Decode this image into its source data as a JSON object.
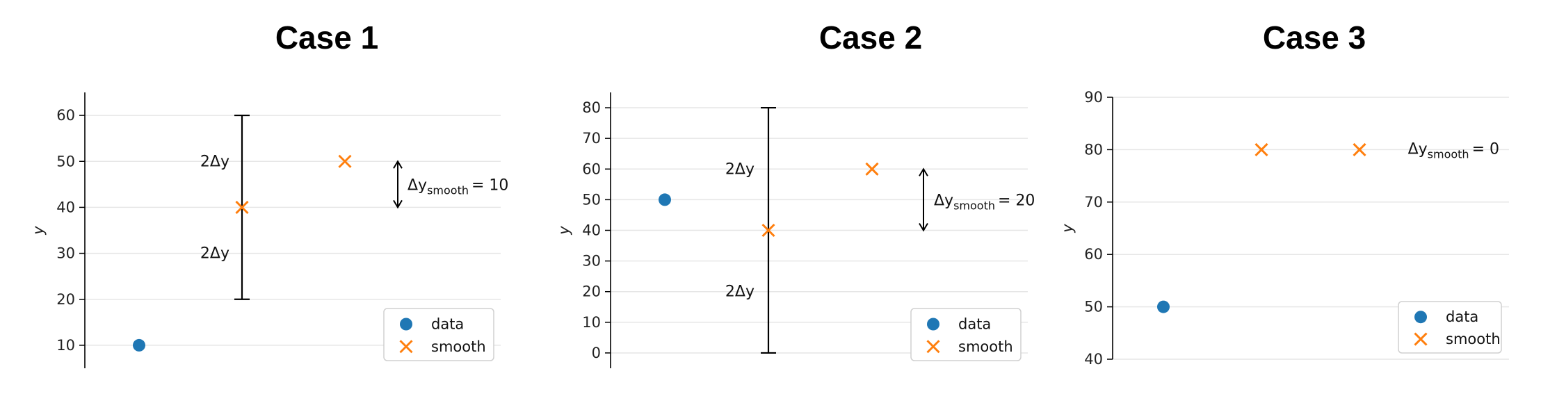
{
  "colors": {
    "data": "#1f77b4",
    "smooth": "#ff7f0e",
    "grid": "#e6e6e6",
    "axis": "#000000"
  },
  "chart_data": [
    {
      "type": "scatter",
      "title": "Case 1",
      "ylabel": "y",
      "ylim": [
        5,
        65
      ],
      "yticks": [
        10,
        20,
        30,
        40,
        50,
        60
      ],
      "grid": true,
      "legend": {
        "position": "bottom-right",
        "entries": [
          "data",
          "smooth"
        ]
      },
      "series": [
        {
          "name": "data",
          "x": [
            0
          ],
          "y": [
            10
          ]
        },
        {
          "name": "smooth",
          "x": [
            1,
            2
          ],
          "y": [
            40,
            50
          ]
        }
      ],
      "errorbar": {
        "x": 1,
        "low": 20,
        "high": 60,
        "upper_label": "2Δy",
        "lower_label": "2Δy"
      },
      "delta": {
        "x": 2.5,
        "from": 50,
        "to": 40,
        "label": "Δy",
        "sub": "smooth",
        "value": "= 10"
      }
    },
    {
      "type": "scatter",
      "title": "Case 2",
      "ylabel": "y",
      "ylim": [
        -5,
        85
      ],
      "yticks": [
        0,
        10,
        20,
        30,
        40,
        50,
        60,
        70,
        80
      ],
      "grid": true,
      "legend": {
        "position": "bottom-right",
        "entries": [
          "data",
          "smooth"
        ]
      },
      "series": [
        {
          "name": "data",
          "x": [
            0
          ],
          "y": [
            50
          ]
        },
        {
          "name": "smooth",
          "x": [
            1,
            2
          ],
          "y": [
            40,
            60
          ]
        }
      ],
      "errorbar": {
        "x": 1,
        "low": 0,
        "high": 80,
        "upper_label": "2Δy",
        "lower_label": "2Δy"
      },
      "delta": {
        "x": 2.5,
        "from": 60,
        "to": 40,
        "label": "Δy",
        "sub": "smooth",
        "value": "= 20"
      }
    },
    {
      "type": "scatter",
      "title": "Case 3",
      "ylabel": "y",
      "ylim": [
        40,
        90
      ],
      "yticks": [
        40,
        50,
        60,
        70,
        80,
        90
      ],
      "grid": true,
      "legend": {
        "position": "bottom-right",
        "entries": [
          "data",
          "smooth"
        ]
      },
      "series": [
        {
          "name": "data",
          "x": [
            0
          ],
          "y": [
            50
          ]
        },
        {
          "name": "smooth",
          "x": [
            1,
            2
          ],
          "y": [
            80,
            80
          ]
        }
      ],
      "delta": {
        "x": 3,
        "label": "Δy",
        "sub": "smooth",
        "value": "= 0"
      }
    }
  ]
}
